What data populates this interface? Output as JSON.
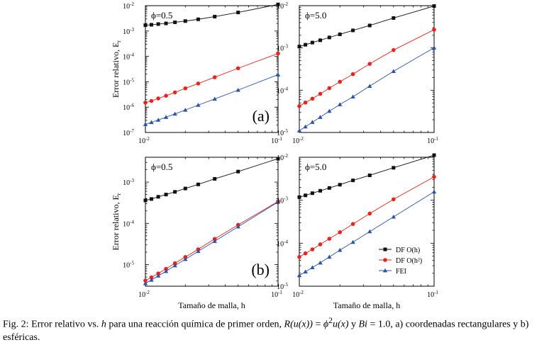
{
  "chart_data": [
    {
      "type": "line",
      "panel_label": "(a)",
      "phi_label": "ϕ=0.5",
      "xscale": "log",
      "yscale": "log",
      "xlim": [
        0.01,
        0.1
      ],
      "ylim": [
        1e-07,
        0.01
      ],
      "yticks": [
        {
          "exp": "-2"
        },
        {
          "exp": "-3"
        },
        {
          "exp": "-4"
        },
        {
          "exp": "-5"
        },
        {
          "exp": "-6"
        },
        {
          "exp": "-7"
        }
      ],
      "xticks": [
        {
          "exp": "-2"
        },
        {
          "exp": "-1"
        }
      ],
      "ylabel": "Error relativo, E",
      "ylabel_sub": "r",
      "xlabel": "",
      "x": [
        0.01,
        0.0111,
        0.0125,
        0.0143,
        0.0167,
        0.02,
        0.025,
        0.0333,
        0.05,
        0.1
      ],
      "series": [
        {
          "name": "DF O(h)",
          "values": [
            0.0017,
            0.00177,
            0.00188,
            0.002,
            0.00221,
            0.00247,
            0.0029,
            0.0037,
            0.0054,
            0.0112
          ]
        },
        {
          "name": "DF O(h²)",
          "values": [
            1.5e-06,
            1.75e-06,
            2.2e-06,
            2.8e-06,
            3.8e-06,
            5.5e-06,
            8.5e-06,
            1.5e-05,
            3.4e-05,
            0.00013
          ]
        },
        {
          "name": "FEI",
          "values": [
            2.1e-07,
            2.5e-07,
            3.1e-07,
            4e-07,
            5.4e-07,
            7.7e-07,
            1.2e-06,
            2.1e-06,
            4.7e-06,
            1.9e-05
          ]
        }
      ]
    },
    {
      "type": "line",
      "panel_label": "",
      "phi_label": "ϕ=5.0",
      "xscale": "log",
      "yscale": "log",
      "xlim": [
        0.01,
        0.1
      ],
      "ylim": [
        1e-05,
        0.01
      ],
      "yticks": [
        {
          "exp": "-2"
        },
        {
          "exp": "-3"
        },
        {
          "exp": "-4"
        },
        {
          "exp": "-5"
        }
      ],
      "xticks": [
        {
          "exp": "-2"
        },
        {
          "exp": "-1"
        }
      ],
      "ylabel": "",
      "ylabel_sub": "",
      "xlabel": "",
      "x": [
        0.01,
        0.0111,
        0.0125,
        0.0143,
        0.0167,
        0.02,
        0.025,
        0.0333,
        0.05,
        0.1
      ],
      "series": [
        {
          "name": "DF O(h)",
          "values": [
            0.00108,
            0.00119,
            0.00134,
            0.00152,
            0.00177,
            0.0021,
            0.0026,
            0.0034,
            0.0051,
            0.0098
          ]
        },
        {
          "name": "DF O(h²)",
          "values": [
            4.2e-05,
            5.1e-05,
            6.3e-05,
            8.2e-05,
            0.000112,
            0.000158,
            0.00024,
            0.00042,
            0.00089,
            0.0027
          ]
        },
        {
          "name": "FEI",
          "values": [
            1.1e-05,
            1.37e-05,
            1.75e-05,
            2.3e-05,
            3.2e-05,
            4.6e-05,
            7e-05,
            0.000125,
            0.00028,
            0.00101
          ]
        }
      ]
    },
    {
      "type": "line",
      "panel_label": "(b)",
      "phi_label": "ϕ=0.5",
      "xscale": "log",
      "yscale": "log",
      "xlim": [
        0.01,
        0.1
      ],
      "ylim": [
        3e-06,
        0.004
      ],
      "yticks": [
        {
          "exp": "-3"
        },
        {
          "exp": "-4"
        },
        {
          "exp": "-5"
        }
      ],
      "xticks": [
        {
          "exp": "-2"
        },
        {
          "exp": "-1"
        }
      ],
      "ylabel": "Error relativo, E",
      "ylabel_sub": "r",
      "xlabel": "Tamaño de malla, h",
      "x": [
        0.01,
        0.0111,
        0.0125,
        0.0143,
        0.0167,
        0.02,
        0.025,
        0.0333,
        0.05,
        0.1
      ],
      "series": [
        {
          "name": "DF O(h)",
          "values": [
            0.00036,
            0.00039,
            0.00044,
            0.0005,
            0.00058,
            0.0007,
            0.00088,
            0.0012,
            0.0018,
            0.0037
          ]
        },
        {
          "name": "DF O(h²)",
          "values": [
            4.1e-06,
            4.9e-06,
            6.1e-06,
            7.9e-06,
            1.08e-05,
            1.53e-05,
            2.35e-05,
            4.2e-05,
            9.2e-05,
            0.00034
          ]
        },
        {
          "name": "FEI",
          "values": [
            3.5e-06,
            4.25e-06,
            5.35e-06,
            6.9e-06,
            9.5e-06,
            1.35e-05,
            2.1e-05,
            3.7e-05,
            8.3e-05,
            0.00033
          ]
        }
      ]
    },
    {
      "type": "line",
      "panel_label": "",
      "phi_label": "ϕ=5.0",
      "xscale": "log",
      "yscale": "log",
      "xlim": [
        0.01,
        0.1
      ],
      "ylim": [
        1e-05,
        0.01
      ],
      "yticks": [
        {
          "exp": "-2"
        },
        {
          "exp": "-3"
        },
        {
          "exp": "-4"
        },
        {
          "exp": "-5"
        }
      ],
      "xticks": [
        {
          "exp": "-2"
        },
        {
          "exp": "-1"
        }
      ],
      "ylabel": "",
      "ylabel_sub": "",
      "xlabel": "Tamaño de malla, h",
      "legend": {
        "location": "lower-right",
        "entries": [
          "DF O(h)",
          "DF O(h²)",
          "FEI"
        ]
      },
      "x": [
        0.01,
        0.0111,
        0.0125,
        0.0143,
        0.0167,
        0.02,
        0.025,
        0.0333,
        0.05,
        0.1
      ],
      "series": [
        {
          "name": "DF O(h)",
          "values": [
            0.00118,
            0.0013,
            0.00146,
            0.00166,
            0.00193,
            0.0023,
            0.0029,
            0.0038,
            0.0057,
            0.0112
          ]
        },
        {
          "name": "DF O(h²)",
          "values": [
            4.8e-05,
            5.8e-05,
            7.2e-05,
            9.4e-05,
            0.000127,
            0.00018,
            0.00028,
            0.00049,
            0.00105,
            0.0035
          ]
        },
        {
          "name": "FEI",
          "values": [
            1.78e-05,
            2.17e-05,
            2.72e-05,
            3.5e-05,
            4.8e-05,
            6.9e-05,
            0.000106,
            0.000187,
            0.00041,
            0.00157
          ]
        }
      ]
    }
  ],
  "series_colors": [
    "#111111",
    "#e8241c",
    "#2b53a6"
  ],
  "series_markers": [
    "square",
    "circle",
    "triangle"
  ],
  "caption": {
    "prefix": "Fig. 2: Error relativo vs. ",
    "h": "h",
    "mid": " para una reacción química de primer orden, ",
    "eq1": "R(u(x))",
    "eq2": " = ",
    "eq3": "ϕ",
    "eq3_sup": "2",
    "eq4": "u(x)",
    "and": " y ",
    "bi": "Bi",
    "tail": " = 1.0, a) coordenadas rectangulares y b) esféricas."
  }
}
